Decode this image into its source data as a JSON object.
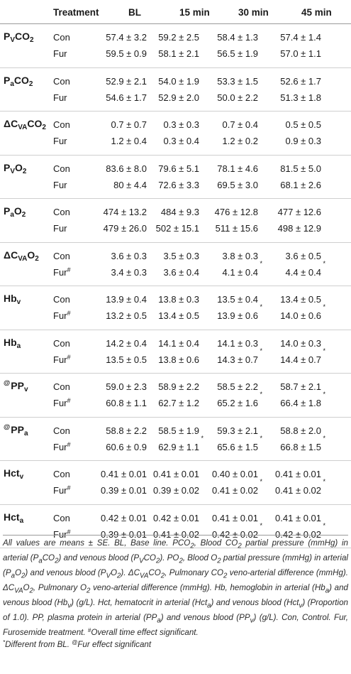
{
  "header": {
    "treatment": "Treatment",
    "bl": "BL",
    "min15": "15 min",
    "min30": "30 min",
    "min45": "45 min"
  },
  "groups": [
    {
      "key": "PvCO2",
      "rows": [
        {
          "treatment": "Con",
          "bl": "57.4 ± 3.2",
          "min15": "59.2 ± 2.5",
          "min30": "58.4 ± 1.3",
          "min45": "57.4 ± 1.4"
        },
        {
          "treatment": "Fur",
          "bl": "59.5 ± 0.9",
          "min15": "58.1 ± 2.1",
          "min30": "56.5 ± 1.9",
          "min45": "57.0 ± 1.1"
        }
      ]
    },
    {
      "key": "PaCO2",
      "rows": [
        {
          "treatment": "Con",
          "bl": "52.9 ± 2.1",
          "min15": "54.0 ± 1.9",
          "min30": "53.3 ± 1.5",
          "min45": "52.6 ± 1.7"
        },
        {
          "treatment": "Fur",
          "bl": "54.6 ± 1.7",
          "min15": "52.9 ± 2.0",
          "min30": "50.0 ± 2.2",
          "min45": "51.3 ± 1.8"
        }
      ]
    },
    {
      "key": "dCvaCO2",
      "rows": [
        {
          "treatment": "Con",
          "bl": "0.7 ± 0.7",
          "min15": "0.3 ± 0.3",
          "min30": "0.7 ± 0.4",
          "min45": "0.5 ± 0.5"
        },
        {
          "treatment": "Fur",
          "bl": "1.2 ± 0.4",
          "min15": "0.3 ± 0.4",
          "min30": "1.2 ± 0.2",
          "min45": "0.9 ± 0.3"
        }
      ]
    },
    {
      "key": "PvO2",
      "rows": [
        {
          "treatment": "Con",
          "bl": "83.6 ± 8.0",
          "min15": "79.6 ± 5.1",
          "min30": "78.1 ± 4.6",
          "min45": "81.5 ± 5.0"
        },
        {
          "treatment": "Fur",
          "bl": "80 ± 4.4",
          "min15": "72.6 ± 3.3",
          "min30": "69.5 ± 3.0",
          "min45": "68.1 ± 2.6"
        }
      ]
    },
    {
      "key": "PaO2",
      "rows": [
        {
          "treatment": "Con",
          "bl": "474 ± 13.2",
          "min15": "484 ± 9.3",
          "min30": "476 ± 12.8",
          "min45": "477 ± 12.6"
        },
        {
          "treatment": "Fur",
          "bl": "479 ± 26.0",
          "min15": "502 ± 15.1",
          "min30": "511 ± 15.6",
          "min45": "498 ± 12.9"
        }
      ]
    },
    {
      "key": "dCvaO2",
      "rows": [
        {
          "treatment": "Con",
          "bl": "3.6 ± 0.3",
          "min15": "3.5 ± 0.3",
          "min30": "3.8 ± 0.3",
          "min45": "3.6 ± 0.5"
        },
        {
          "treatment": "Fur",
          "treatment_mark": "#",
          "bl": "3.4 ± 0.3",
          "min15": "3.6 ± 0.4",
          "min30": "4.1 ± 0.4",
          "min30_mark": "*",
          "min45": "4.4 ± 0.4",
          "min45_mark": "*"
        }
      ]
    },
    {
      "key": "Hbv",
      "rows": [
        {
          "treatment": "Con",
          "bl": "13.9 ± 0.4",
          "min15": "13.8 ± 0.3",
          "min30": "13.5 ± 0.4",
          "min45": "13.4 ± 0.5"
        },
        {
          "treatment": "Fur",
          "treatment_mark": "#",
          "bl": "13.2 ± 0.5",
          "min15": "13.4 ± 0.5",
          "min30": "13.9 ± 0.6",
          "min30_mark": "*",
          "min45": "14.0 ± 0.6",
          "min45_mark": "*"
        }
      ]
    },
    {
      "key": "Hba",
      "rows": [
        {
          "treatment": "Con",
          "bl": "14.2 ± 0.4",
          "min15": "14.1 ± 0.4",
          "min30": "14.1 ± 0.3",
          "min45": "14.0 ± 0.3"
        },
        {
          "treatment": "Fur",
          "treatment_mark": "#",
          "bl": "13.5 ± 0.5",
          "min15": "13.8 ± 0.6",
          "min30": "14.3 ± 0.7",
          "min30_mark": "*",
          "min45": "14.4 ± 0.7",
          "min45_mark": "*"
        }
      ]
    },
    {
      "key": "PPv",
      "rows": [
        {
          "treatment": "Con",
          "bl": "59.0 ± 2.3",
          "min15": "58.9 ± 2.2",
          "min30": "58.5 ± 2.2",
          "min45": "58.7 ± 2.1"
        },
        {
          "treatment": "Fur",
          "treatment_mark": "#",
          "bl": "60.8 ± 1.1",
          "min15": "62.7 ± 1.2",
          "min30": "65.2 ± 1.6",
          "min30_mark": "*",
          "min45": "66.4 ± 1.8",
          "min45_mark": "*"
        }
      ]
    },
    {
      "key": "PPa",
      "rows": [
        {
          "treatment": "Con",
          "bl": "58.8 ± 2.2",
          "min15": "58.5 ± 1.9",
          "min30": "59.3 ± 2.1",
          "min45": "58.8 ± 2.0"
        },
        {
          "treatment": "Fur",
          "treatment_mark": "#",
          "bl": "60.6 ± 0.9",
          "min15": "62.9 ± 1.1",
          "min15_mark": "*",
          "min30": "65.6 ± 1.5",
          "min30_mark": "*",
          "min45": "66.8 ± 1.5",
          "min45_mark": "*"
        }
      ]
    },
    {
      "key": "Hctv",
      "rows": [
        {
          "treatment": "Con",
          "bl": "0.41 ± 0.01",
          "min15": "0.41 ± 0.01",
          "min30": "0.40 ± 0.01",
          "min45": "0.41 ± 0.01"
        },
        {
          "treatment": "Fur",
          "treatment_mark": "#",
          "bl": "0.39 ± 0.01",
          "min15": "0.39 ± 0.02",
          "min30": "0.41 ± 0.02",
          "min30_mark": "*",
          "min45": "0.41 ± 0.02",
          "min45_mark": "*"
        }
      ]
    },
    {
      "key": "Hcta",
      "rows": [
        {
          "treatment": "Con",
          "bl": "0.42 ± 0.01",
          "min15": "0.42 ± 0.01",
          "min30": "0.41 ± 0.01",
          "min45": "0.41 ± 0.01"
        },
        {
          "treatment": "Fur",
          "treatment_mark": "#",
          "bl": "0.39 ± 0.01",
          "min15": "0.41 ± 0.02",
          "min30": "0.42 ± 0.02",
          "min30_mark": "*",
          "min45": "0.42 ± 0.02",
          "min45_mark": "*"
        }
      ]
    }
  ],
  "param_labels": {
    "PvCO2": {
      "a": "P",
      "b": "V",
      "c": "CO",
      "d": "2"
    },
    "PaCO2": {
      "a": "P",
      "b": "a",
      "c": "CO",
      "d": "2"
    },
    "dCvaCO2": {
      "a": "ΔC",
      "b": "VA",
      "c": "CO",
      "d": "2"
    },
    "PvO2": {
      "a": "P",
      "b": "V",
      "c": "O",
      "d": "2"
    },
    "PaO2": {
      "a": "P",
      "b": "a",
      "c": "O",
      "d": "2"
    },
    "dCvaO2": {
      "a": "ΔC",
      "b": "VA",
      "c": "O",
      "d": "2"
    },
    "Hbv": {
      "a": "Hb",
      "b": "v"
    },
    "Hba": {
      "a": "Hb",
      "b": "a"
    },
    "PPv": {
      "mark": "@",
      "a": "PP",
      "b": "v"
    },
    "PPa": {
      "mark": "@",
      "a": "PP",
      "b": "a"
    },
    "Hctv": {
      "a": "Hct",
      "b": "v"
    },
    "Hcta": {
      "a": "Hct",
      "b": "a"
    }
  },
  "footnote": {
    "line1": "All values are means ± SE. BL, Base line. PCO",
    "s1": "2",
    "t1": ", Blood CO",
    "s2": "2",
    "t2": " partial pressure (mmHg) in arterial (P",
    "s3": "a",
    "t3": "CO",
    "s4": "2",
    "t4": ") and venous blood (P",
    "s5": "V",
    "t5": "CO",
    "s6": "2",
    "t6": "). PO",
    "s7": "2",
    "t7": ", Blood O",
    "s8": "2",
    "t8": " partial pressure (mmHg) in arterial (P",
    "s9": "a",
    "t9": "O",
    "s10": "2",
    "t10": ") and venous blood (P",
    "s11": "V",
    "t11": "O",
    "s12": "2",
    "t12": "). ΔC",
    "s13": "VA",
    "t13": "CO",
    "s14": "2",
    "t14": ", Pulmonary CO",
    "s15": "2",
    "t15": " veno-arterial difference (mmHg). ΔC",
    "s16": "VA",
    "t16": "O",
    "s17": "2",
    "t17": ", Pulmonary O",
    "s18": "2",
    "t18": " veno-arterial difference (mmHg). Hb, hemoglobin in arterial (Hb",
    "s19": "a",
    "t19": ") and venous blood (Hb",
    "s20": "v",
    "t20": ") (g/L). Hct, hematocrit in arterial (Hct",
    "s21": "a",
    "t21": ") and venous blood (Hct",
    "s22": "v",
    "t22": ") (Proportion of 1.0). PP, plasma protein in arterial (PP",
    "s23": "a",
    "t23": ") and venous blood (PP",
    "s24": "v",
    "t24": ") (g/L). Con, Control. Fur, Furosemide treatment. ",
    "m1": "#",
    "t25": "Overall time effect significant.",
    "m2": "*",
    "t26": "Different from BL. ",
    "m3": "@",
    "t27": "Fur effect significant"
  }
}
